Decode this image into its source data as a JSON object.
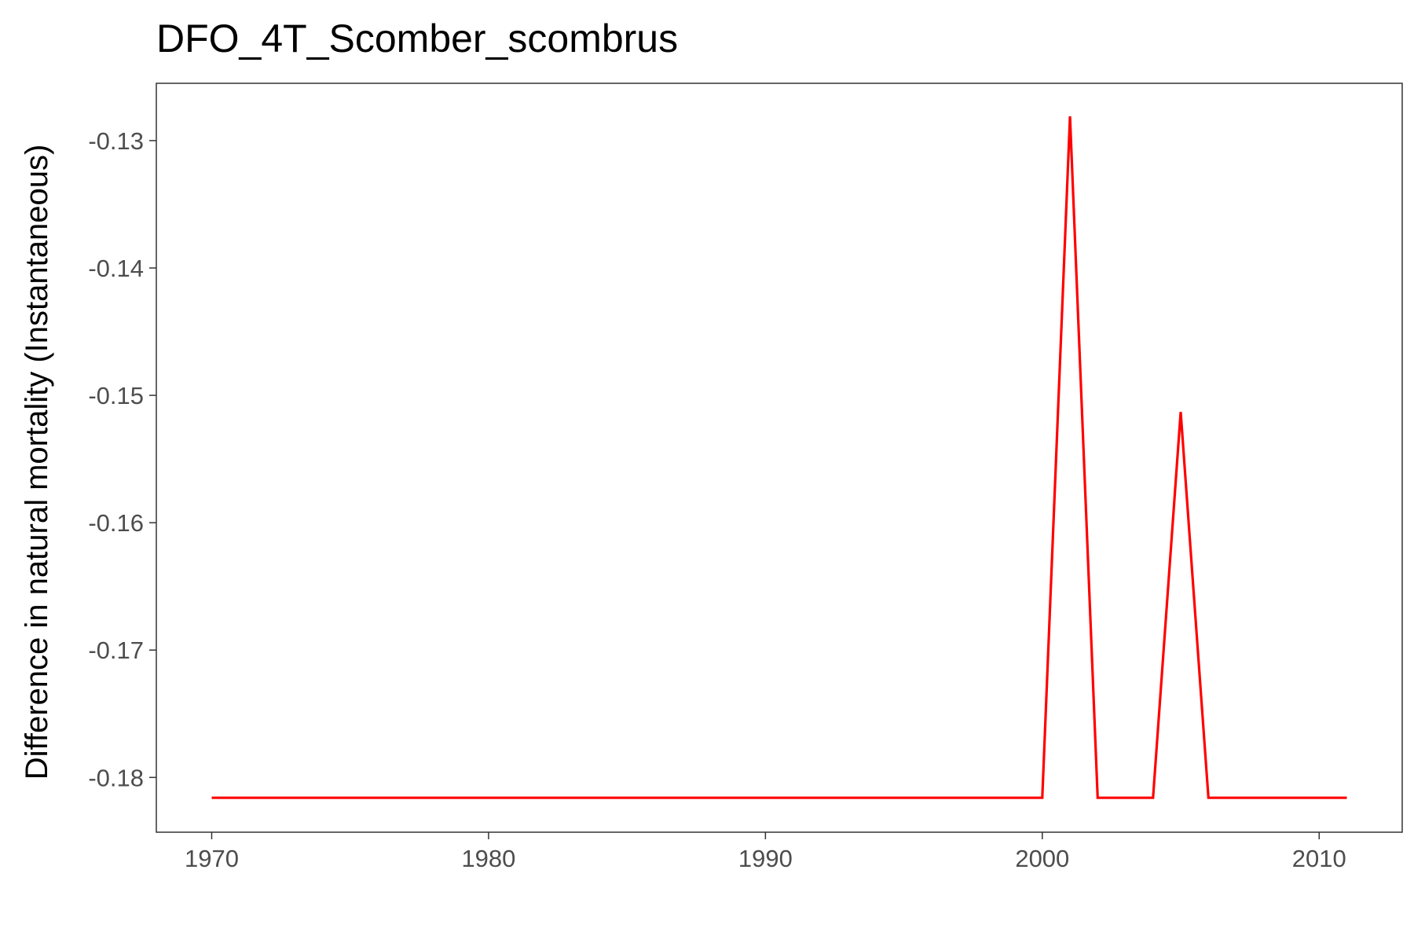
{
  "chart_data": {
    "type": "line",
    "title": "DFO_4T_Scomber_scombrus",
    "xlabel": "",
    "ylabel": "Difference in natural mortality (Instantaneous)",
    "xlim": [
      1968,
      2013
    ],
    "ylim": [
      -0.1843,
      -0.1255
    ],
    "x_ticks": [
      1970,
      1980,
      1990,
      2000,
      2010
    ],
    "y_ticks": [
      -0.13,
      -0.14,
      -0.15,
      -0.16,
      -0.17,
      -0.18
    ],
    "x_tick_labels": [
      "1970",
      "1980",
      "1990",
      "2000",
      "2010"
    ],
    "y_tick_labels": [
      "-0.13",
      "-0.14",
      "-0.15",
      "-0.16",
      "-0.17",
      "-0.18"
    ],
    "grid": false,
    "series": [
      {
        "color": "#ff0000",
        "x": [
          1970,
          1971,
          1972,
          1973,
          1974,
          1975,
          1976,
          1977,
          1978,
          1979,
          1980,
          1981,
          1982,
          1983,
          1984,
          1985,
          1986,
          1987,
          1988,
          1989,
          1990,
          1991,
          1992,
          1993,
          1994,
          1995,
          1996,
          1997,
          1998,
          1999,
          2000,
          2001,
          2002,
          2003,
          2004,
          2005,
          2006,
          2007,
          2008,
          2009,
          2010,
          2011
        ],
        "y": [
          -0.1816,
          -0.1816,
          -0.1816,
          -0.1816,
          -0.1816,
          -0.1816,
          -0.1816,
          -0.1816,
          -0.1816,
          -0.1816,
          -0.1816,
          -0.1816,
          -0.1816,
          -0.1816,
          -0.1816,
          -0.1816,
          -0.1816,
          -0.1816,
          -0.1816,
          -0.1816,
          -0.1816,
          -0.1816,
          -0.1816,
          -0.1816,
          -0.1816,
          -0.1816,
          -0.1816,
          -0.1816,
          -0.1816,
          -0.1816,
          -0.1816,
          -0.1281,
          -0.1816,
          -0.1816,
          -0.1816,
          -0.1513,
          -0.1816,
          -0.1816,
          -0.1816,
          -0.1816,
          -0.1816,
          -0.1816
        ]
      }
    ]
  }
}
